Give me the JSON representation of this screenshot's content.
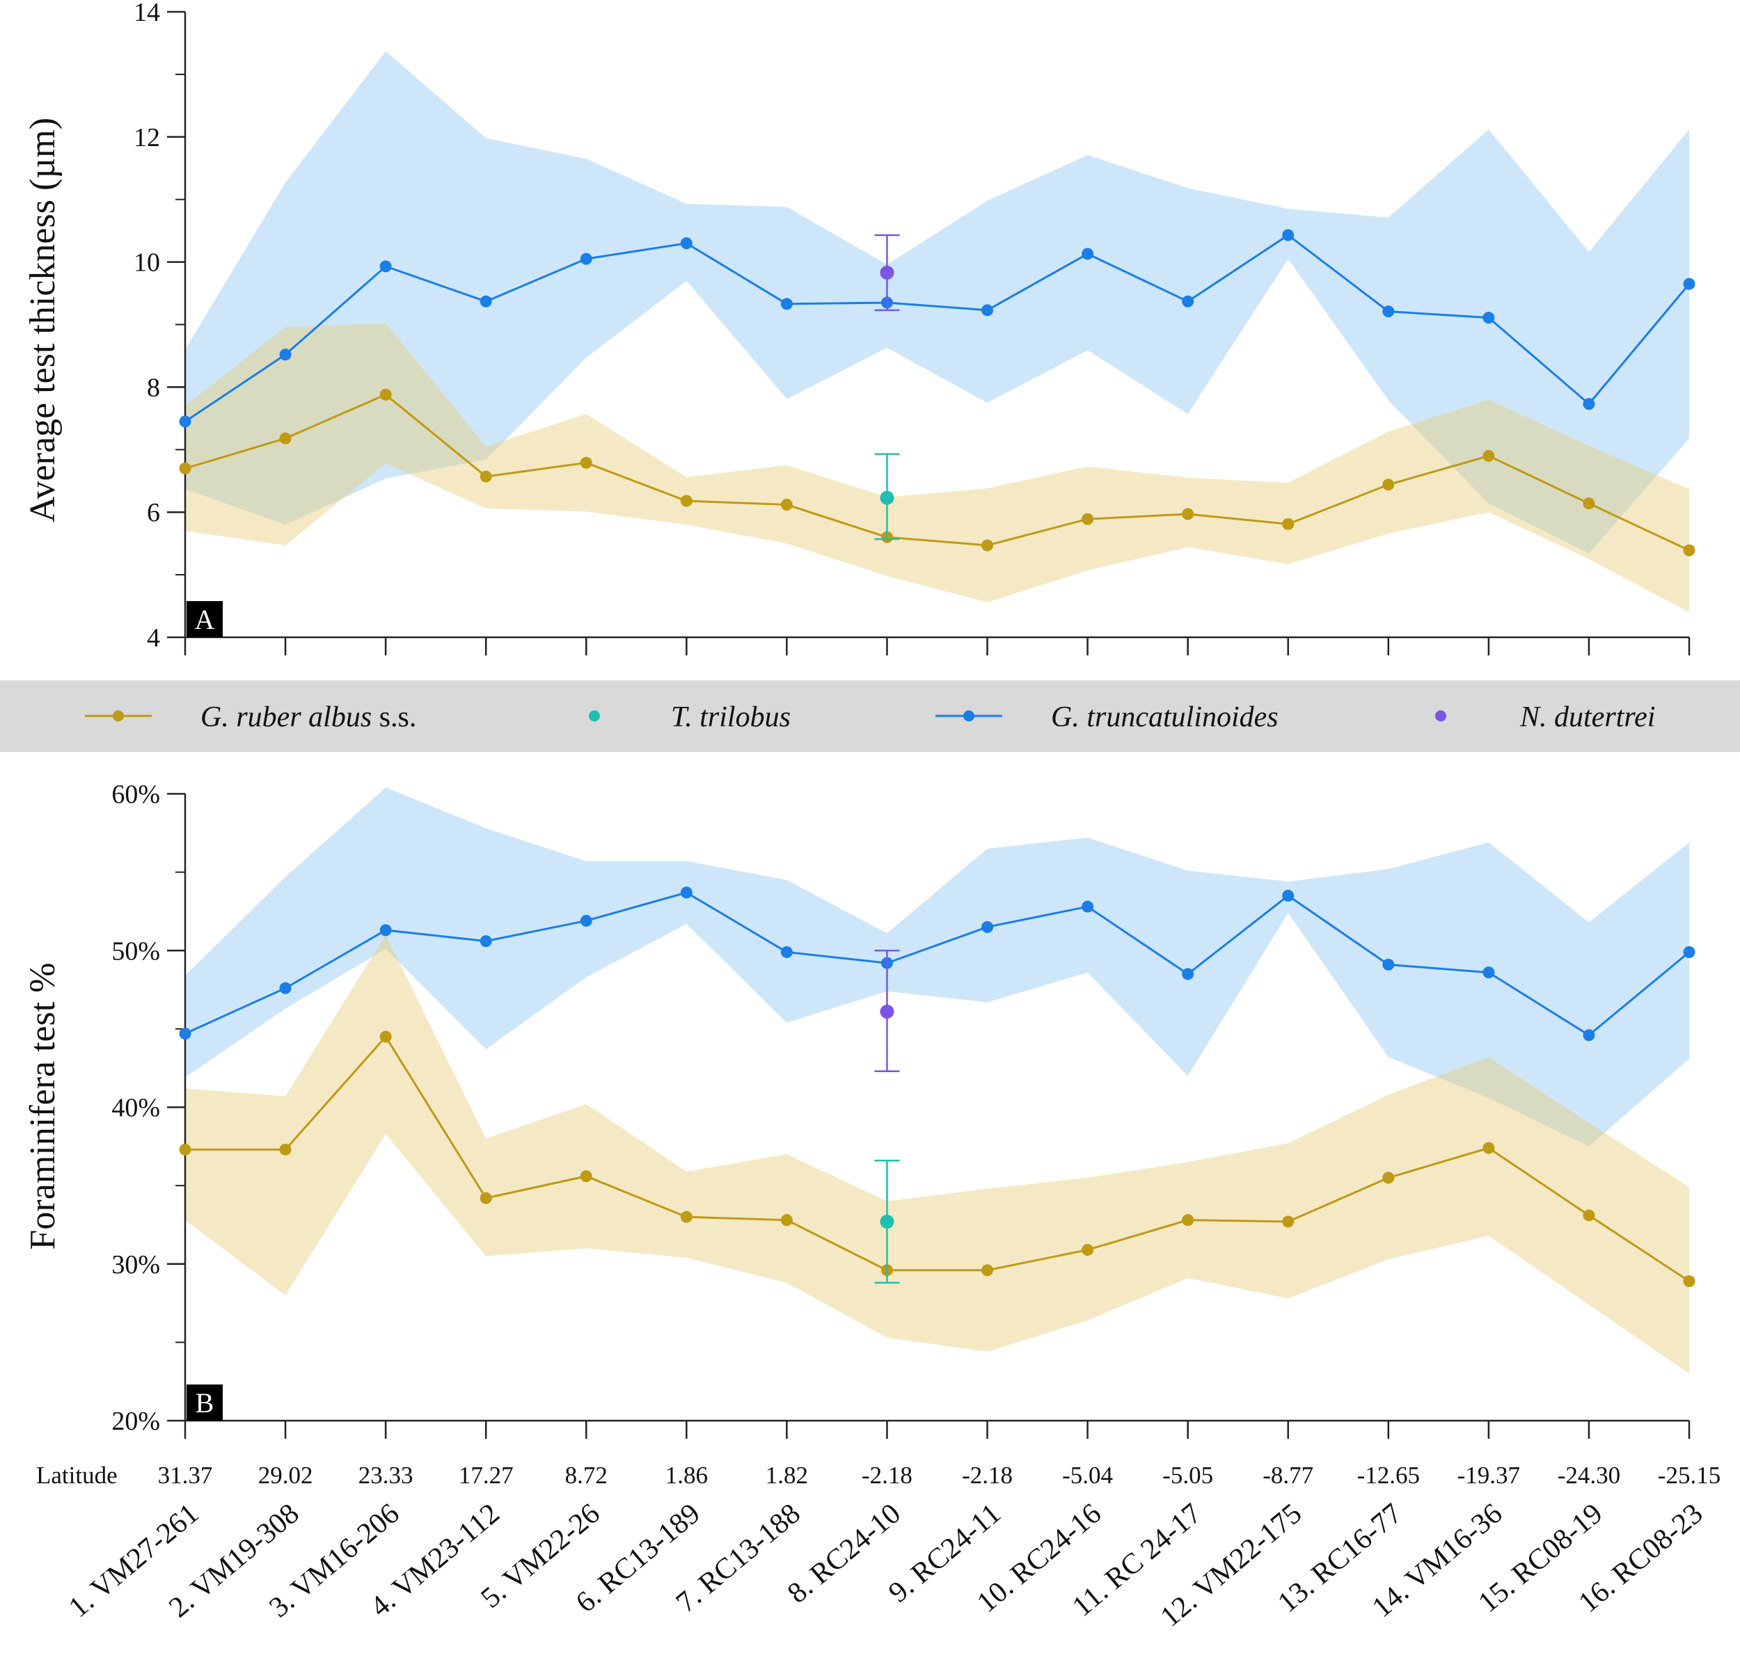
{
  "colors": {
    "ruber": "#bf9a14",
    "ruber_band": "#f1e3b4",
    "trilobus": "#20bfb0",
    "truncatulinoides": "#1a7ee6",
    "trunc_band": "#cde6fa",
    "dutertrei": "#7a55e6",
    "legend_bg": "#d9d9d9"
  },
  "legend": {
    "items": [
      {
        "name": "G. ruber albus",
        "suffix": " s.s.",
        "series": "ruber",
        "line": true
      },
      {
        "name": "T. trilobus",
        "suffix": "",
        "series": "trilobus",
        "line": false
      },
      {
        "name": "G. truncatulinoides",
        "suffix": "",
        "series": "truncatulinoides",
        "line": true
      },
      {
        "name": "N. dutertrei",
        "suffix": "",
        "series": "dutertrei",
        "line": false
      }
    ]
  },
  "x_axis": {
    "latitude_title": "Latitude",
    "latitudes": [
      "31.37",
      "29.02",
      "23.33",
      "17.27",
      "8.72",
      "1.86",
      "1.82",
      "-2.18",
      "-2.18",
      "-5.04",
      "-5.05",
      "-8.77",
      "-12.65",
      "-19.37",
      "-24.30",
      "-25.15"
    ],
    "sites": [
      "1. VM27-261",
      "2. VM19-308",
      "3. VM16-206",
      "4. VM23-112",
      "5. VM22-26",
      "6. RC13-189",
      "7. RC13-188",
      "8. RC24-10",
      "9. RC24-11",
      "10. RC24-16",
      "11. RC 24-17",
      "12. VM22-175",
      "13. RC16-77",
      "14. VM16-36",
      "15. RC08-19",
      "16. RC08-23"
    ]
  },
  "chart_data": [
    {
      "panel": "A",
      "type": "line",
      "ylabel": "Average test thickness (µm)",
      "ylim": [
        4,
        14
      ],
      "yticks": [
        4,
        6,
        8,
        10,
        12,
        14
      ],
      "ytick_labels": [
        "4",
        "6",
        "8",
        "10",
        "12",
        "14"
      ],
      "series": [
        {
          "name": "G. ruber albus s.s.",
          "key": "ruber",
          "values": [
            6.7,
            7.18,
            7.88,
            6.57,
            6.79,
            6.18,
            6.12,
            5.6,
            5.47,
            5.89,
            5.97,
            5.81,
            6.44,
            6.9,
            6.14,
            5.39
          ],
          "band_lower": [
            5.7,
            5.47,
            6.78,
            6.06,
            6.01,
            5.8,
            5.5,
            4.98,
            4.56,
            5.07,
            5.44,
            5.17,
            5.66,
            6.0,
            5.25,
            4.4
          ],
          "band_upper": [
            7.7,
            8.96,
            9.02,
            7.05,
            7.57,
            6.56,
            6.75,
            6.24,
            6.38,
            6.73,
            6.55,
            6.47,
            7.29,
            7.8,
            7.06,
            6.37
          ]
        },
        {
          "name": "G. truncatulinoides",
          "key": "truncatulinoides",
          "values": [
            7.45,
            8.52,
            9.93,
            9.37,
            10.05,
            10.3,
            9.33,
            9.35,
            9.23,
            10.13,
            9.37,
            10.43,
            9.21,
            9.11,
            7.73,
            9.65
          ],
          "band_lower": [
            6.37,
            5.8,
            6.54,
            6.84,
            8.47,
            9.7,
            7.81,
            8.63,
            7.75,
            8.59,
            7.57,
            10.05,
            7.79,
            6.14,
            5.34,
            7.18
          ],
          "band_upper": [
            8.6,
            11.27,
            13.37,
            11.98,
            11.65,
            10.93,
            10.88,
            9.96,
            10.98,
            11.71,
            11.18,
            10.85,
            10.71,
            12.12,
            10.16,
            12.12
          ]
        }
      ],
      "points": [
        {
          "name": "T. trilobus",
          "key": "trilobus",
          "site_index": 7,
          "value": 6.23,
          "err_low": 5.57,
          "err_high": 6.93
        },
        {
          "name": "N. dutertrei",
          "key": "dutertrei",
          "site_index": 7,
          "value": 9.83,
          "err_low": 9.23,
          "err_high": 10.43
        }
      ]
    },
    {
      "panel": "B",
      "type": "line",
      "ylabel": "Foraminifera test %",
      "ylim": [
        20,
        60
      ],
      "yticks": [
        20,
        30,
        40,
        50,
        60
      ],
      "ytick_labels": [
        "20%",
        "30%",
        "40%",
        "50%",
        "60%"
      ],
      "series": [
        {
          "name": "G. ruber albus s.s.",
          "key": "ruber",
          "values": [
            37.3,
            37.3,
            44.5,
            34.2,
            35.6,
            33.0,
            32.8,
            29.6,
            29.6,
            30.9,
            32.8,
            32.7,
            35.5,
            37.4,
            33.1,
            28.9
          ],
          "band_lower": [
            32.8,
            28.0,
            38.3,
            30.5,
            31.0,
            30.4,
            28.8,
            25.3,
            24.4,
            26.4,
            29.1,
            27.8,
            30.3,
            31.8,
            27.4,
            23.0
          ],
          "band_upper": [
            41.2,
            40.7,
            51.0,
            38.0,
            40.2,
            35.9,
            37.0,
            34.0,
            34.8,
            35.5,
            36.5,
            37.7,
            40.8,
            43.2,
            39.0,
            34.9
          ]
        },
        {
          "name": "G. truncatulinoides",
          "key": "truncatulinoides",
          "values": [
            44.7,
            47.6,
            51.3,
            50.6,
            51.9,
            53.7,
            49.9,
            49.2,
            51.5,
            52.8,
            48.5,
            53.5,
            49.1,
            48.6,
            44.6,
            49.9
          ],
          "band_lower": [
            41.9,
            46.3,
            50.1,
            43.7,
            48.3,
            51.7,
            45.4,
            47.4,
            46.7,
            48.6,
            42.0,
            52.4,
            43.2,
            40.6,
            37.5,
            43.1
          ],
          "band_upper": [
            48.4,
            54.7,
            60.4,
            57.8,
            55.7,
            55.7,
            54.5,
            51.1,
            56.5,
            57.2,
            55.1,
            54.4,
            55.2,
            56.9,
            51.8,
            56.9
          ]
        }
      ],
      "points": [
        {
          "name": "T. trilobus",
          "key": "trilobus",
          "site_index": 7,
          "value": 32.7,
          "err_low": 28.8,
          "err_high": 36.6
        },
        {
          "name": "N. dutertrei",
          "key": "dutertrei",
          "site_index": 7,
          "value": 46.1,
          "err_low": 42.3,
          "err_high": 50.0
        }
      ]
    }
  ]
}
